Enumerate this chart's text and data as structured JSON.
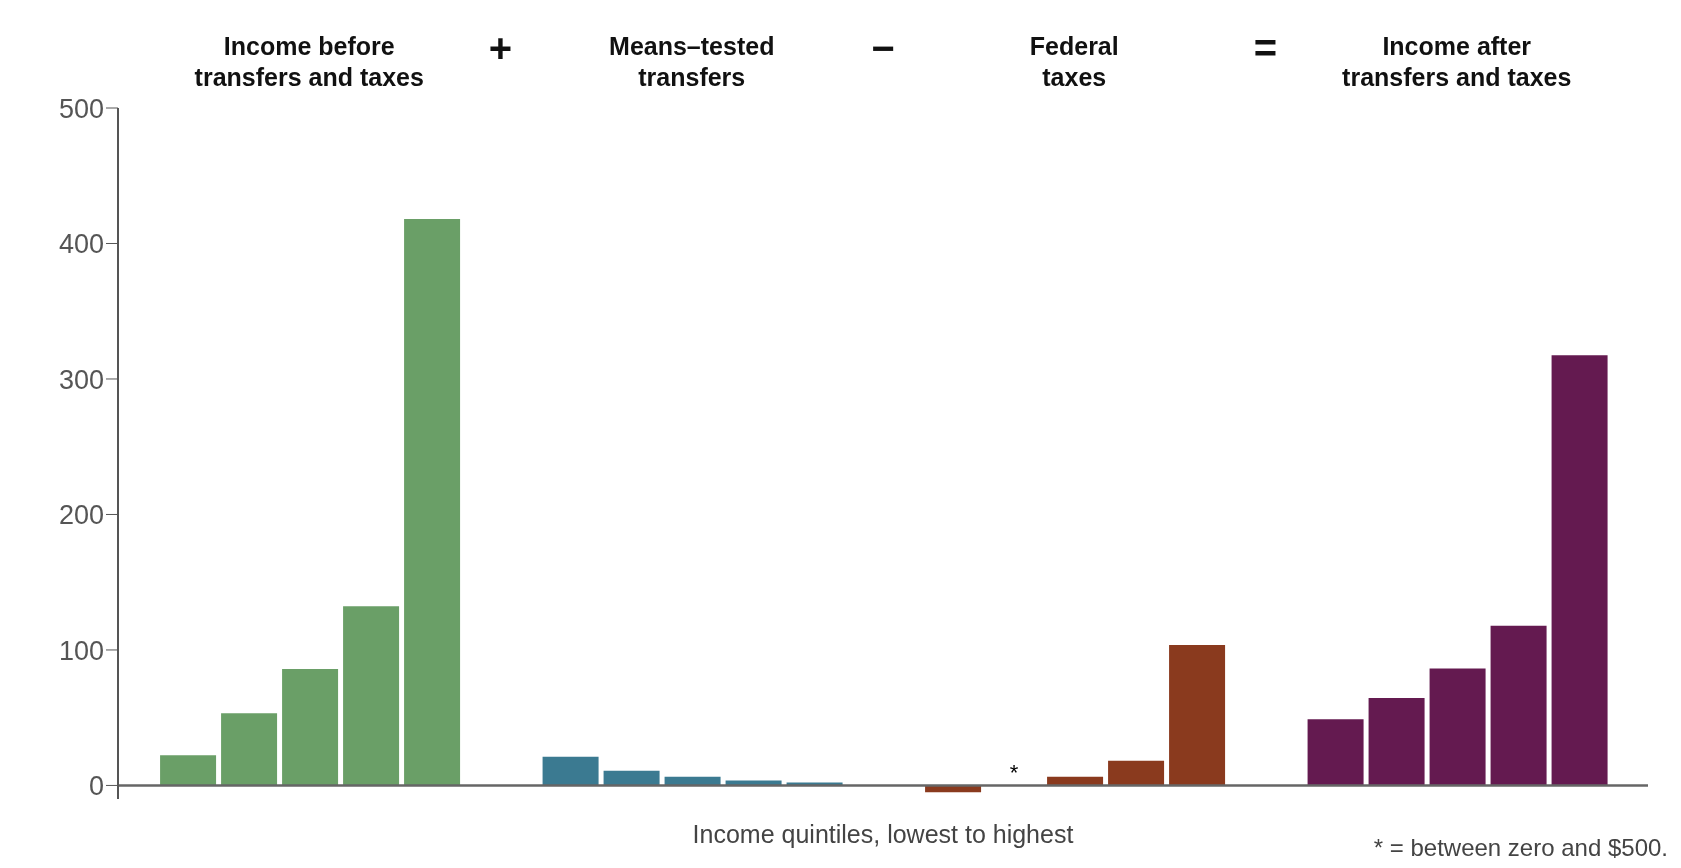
{
  "chart_data": {
    "type": "bar",
    "categories": [
      "Income before\ntransfers and taxes",
      "Means–tested\ntransfers",
      "Federal\ntaxes",
      "Income after\ntransfers and taxes"
    ],
    "xlabel": "Income quintiles, lowest to highest",
    "annotations": [
      "+",
      "−",
      "=",
      "* = between zero and $500."
    ],
    "series": [
      {
        "colors": [
          "#6a9f67",
          "#3b7a91",
          "#8a3a1e",
          "#641a50"
        ],
        "values": [
          22.2,
          21.2,
          -5.0,
          48.9
        ]
      },
      {
        "colors": [
          "#6a9f67",
          "#3b7a91",
          "#8a3a1e",
          "#641a50"
        ],
        "values": [
          53.3,
          10.8,
          0.2,
          64.6
        ],
        "value_labels": [
          null,
          null,
          "*",
          null
        ]
      },
      {
        "colors": [
          "#6a9f67",
          "#3b7a91",
          "#8a3a1e",
          "#641a50"
        ],
        "values": [
          86.0,
          6.5,
          6.5,
          86.4
        ]
      },
      {
        "colors": [
          "#6a9f67",
          "#3b7a91",
          "#8a3a1e",
          "#641a50"
        ],
        "values": [
          132.3,
          3.6,
          18.3,
          117.9
        ]
      },
      {
        "colors": [
          "#6a9f67",
          "#3b7a91",
          "#8a3a1e",
          "#641a50"
        ],
        "values": [
          418.1,
          2.2,
          103.7,
          317.5
        ]
      }
    ],
    "ylim": [
      -10,
      500
    ],
    "yticks": [
      0,
      100,
      200,
      300,
      400,
      500
    ]
  }
}
